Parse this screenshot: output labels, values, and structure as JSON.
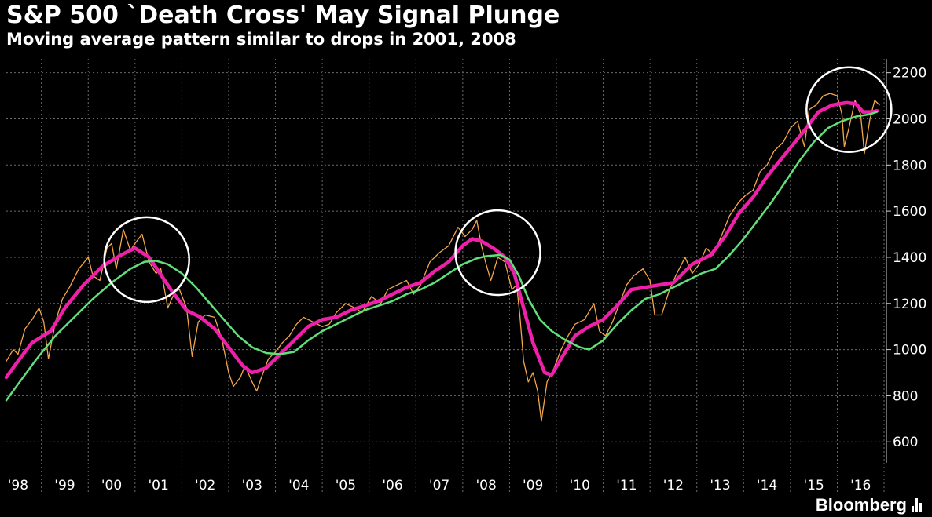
{
  "header": {
    "title": "S&P 500 `Death Cross' May Signal Plunge",
    "subtitle": "Moving average pattern similar to drops in 2001, 2008"
  },
  "footer": {
    "brand": "Bloomberg",
    "brand_icon": "bar-chart-icon"
  },
  "chart_data": {
    "type": "line",
    "title": "S&P 500 `Death Cross' May Signal Plunge",
    "subtitle": "Moving average pattern similar to drops in 2001, 2008",
    "xlabel": "",
    "ylabel": "",
    "x_range": [
      1997.75,
      2016.55
    ],
    "ylim": [
      560,
      2260
    ],
    "y_ticks": [
      600,
      800,
      1000,
      1200,
      1400,
      1600,
      1800,
      2000,
      2200
    ],
    "x_tick_labels": [
      {
        "x": 1998,
        "label": "'98"
      },
      {
        "x": 1999,
        "label": "'99"
      },
      {
        "x": 2000,
        "label": "'00"
      },
      {
        "x": 2001,
        "label": "'01"
      },
      {
        "x": 2002,
        "label": "'02"
      },
      {
        "x": 2003,
        "label": "'03"
      },
      {
        "x": 2004,
        "label": "'04"
      },
      {
        "x": 2005,
        "label": "'05"
      },
      {
        "x": 2006,
        "label": "'06"
      },
      {
        "x": 2007,
        "label": "'07"
      },
      {
        "x": 2008,
        "label": "'08"
      },
      {
        "x": 2009,
        "label": "'09"
      },
      {
        "x": 2010,
        "label": "'10"
      },
      {
        "x": 2011,
        "label": "'11"
      },
      {
        "x": 2012,
        "label": "'12"
      },
      {
        "x": 2013,
        "label": "'13"
      },
      {
        "x": 2014,
        "label": "'14"
      },
      {
        "x": 2015,
        "label": "'15"
      },
      {
        "x": 2016,
        "label": "'16"
      }
    ],
    "grid": true,
    "y_axis_side": "right",
    "series": [
      {
        "color": "#f5a64a",
        "points": [
          [
            1997.75,
            950
          ],
          [
            1997.9,
            1000
          ],
          [
            1998.0,
            980
          ],
          [
            1998.15,
            1090
          ],
          [
            1998.3,
            1130
          ],
          [
            1998.45,
            1180
          ],
          [
            1998.55,
            1120
          ],
          [
            1998.65,
            960
          ],
          [
            1998.8,
            1120
          ],
          [
            1998.95,
            1220
          ],
          [
            1999.1,
            1270
          ],
          [
            1999.3,
            1350
          ],
          [
            1999.5,
            1400
          ],
          [
            1999.6,
            1320
          ],
          [
            1999.75,
            1300
          ],
          [
            1999.9,
            1440
          ],
          [
            2000.0,
            1460
          ],
          [
            2000.1,
            1350
          ],
          [
            2000.25,
            1520
          ],
          [
            2000.4,
            1430
          ],
          [
            2000.5,
            1460
          ],
          [
            2000.65,
            1500
          ],
          [
            2000.8,
            1380
          ],
          [
            2000.95,
            1330
          ],
          [
            2001.05,
            1350
          ],
          [
            2001.2,
            1180
          ],
          [
            2001.35,
            1250
          ],
          [
            2001.45,
            1260
          ],
          [
            2001.6,
            1180
          ],
          [
            2001.72,
            970
          ],
          [
            2001.85,
            1120
          ],
          [
            2002.0,
            1150
          ],
          [
            2002.2,
            1140
          ],
          [
            2002.35,
            1050
          ],
          [
            2002.5,
            900
          ],
          [
            2002.6,
            840
          ],
          [
            2002.75,
            880
          ],
          [
            2002.85,
            930
          ],
          [
            2003.0,
            860
          ],
          [
            2003.1,
            820
          ],
          [
            2003.2,
            880
          ],
          [
            2003.35,
            960
          ],
          [
            2003.5,
            990
          ],
          [
            2003.65,
            1030
          ],
          [
            2003.8,
            1060
          ],
          [
            2003.95,
            1110
          ],
          [
            2004.1,
            1140
          ],
          [
            2004.3,
            1120
          ],
          [
            2004.5,
            1100
          ],
          [
            2004.65,
            1110
          ],
          [
            2004.8,
            1160
          ],
          [
            2005.0,
            1200
          ],
          [
            2005.2,
            1180
          ],
          [
            2005.35,
            1160
          ],
          [
            2005.55,
            1230
          ],
          [
            2005.75,
            1200
          ],
          [
            2005.9,
            1260
          ],
          [
            2006.1,
            1280
          ],
          [
            2006.3,
            1300
          ],
          [
            2006.45,
            1240
          ],
          [
            2006.6,
            1280
          ],
          [
            2006.8,
            1380
          ],
          [
            2007.0,
            1420
          ],
          [
            2007.2,
            1450
          ],
          [
            2007.4,
            1530
          ],
          [
            2007.55,
            1490
          ],
          [
            2007.7,
            1520
          ],
          [
            2007.8,
            1560
          ],
          [
            2007.9,
            1450
          ],
          [
            2008.0,
            1370
          ],
          [
            2008.1,
            1300
          ],
          [
            2008.25,
            1400
          ],
          [
            2008.4,
            1380
          ],
          [
            2008.55,
            1260
          ],
          [
            2008.65,
            1280
          ],
          [
            2008.72,
            1150
          ],
          [
            2008.8,
            950
          ],
          [
            2008.9,
            860
          ],
          [
            2009.0,
            900
          ],
          [
            2009.1,
            820
          ],
          [
            2009.18,
            690
          ],
          [
            2009.3,
            860
          ],
          [
            2009.45,
            920
          ],
          [
            2009.6,
            1000
          ],
          [
            2009.75,
            1060
          ],
          [
            2009.9,
            1110
          ],
          [
            2010.1,
            1130
          ],
          [
            2010.3,
            1200
          ],
          [
            2010.42,
            1080
          ],
          [
            2010.55,
            1060
          ],
          [
            2010.7,
            1120
          ],
          [
            2010.85,
            1200
          ],
          [
            2011.0,
            1280
          ],
          [
            2011.15,
            1320
          ],
          [
            2011.35,
            1350
          ],
          [
            2011.5,
            1300
          ],
          [
            2011.6,
            1150
          ],
          [
            2011.75,
            1150
          ],
          [
            2011.9,
            1250
          ],
          [
            2012.05,
            1320
          ],
          [
            2012.25,
            1400
          ],
          [
            2012.4,
            1330
          ],
          [
            2012.55,
            1370
          ],
          [
            2012.7,
            1440
          ],
          [
            2012.85,
            1410
          ],
          [
            2013.0,
            1480
          ],
          [
            2013.2,
            1580
          ],
          [
            2013.4,
            1640
          ],
          [
            2013.55,
            1670
          ],
          [
            2013.7,
            1690
          ],
          [
            2013.85,
            1770
          ],
          [
            2014.0,
            1800
          ],
          [
            2014.15,
            1860
          ],
          [
            2014.35,
            1900
          ],
          [
            2014.5,
            1960
          ],
          [
            2014.65,
            1990
          ],
          [
            2014.8,
            1880
          ],
          [
            2014.9,
            2040
          ],
          [
            2015.05,
            2060
          ],
          [
            2015.2,
            2100
          ],
          [
            2015.35,
            2110
          ],
          [
            2015.5,
            2100
          ],
          [
            2015.6,
            2020
          ],
          [
            2015.65,
            1880
          ],
          [
            2015.75,
            1960
          ],
          [
            2015.88,
            2080
          ],
          [
            2016.0,
            2020
          ],
          [
            2016.08,
            1850
          ],
          [
            2016.2,
            2000
          ],
          [
            2016.3,
            2080
          ],
          [
            2016.4,
            2060
          ]
        ]
      },
      {
        "color": "#ee1fa8",
        "points": [
          [
            1997.75,
            880
          ],
          [
            1998.0,
            950
          ],
          [
            1998.3,
            1030
          ],
          [
            1998.7,
            1080
          ],
          [
            1999.0,
            1180
          ],
          [
            1999.4,
            1280
          ],
          [
            1999.8,
            1360
          ],
          [
            2000.2,
            1410
          ],
          [
            2000.5,
            1440
          ],
          [
            2000.8,
            1400
          ],
          [
            2001.0,
            1340
          ],
          [
            2001.3,
            1250
          ],
          [
            2001.6,
            1170
          ],
          [
            2001.9,
            1140
          ],
          [
            2002.2,
            1090
          ],
          [
            2002.5,
            1010
          ],
          [
            2002.8,
            930
          ],
          [
            2003.0,
            900
          ],
          [
            2003.3,
            920
          ],
          [
            2003.6,
            980
          ],
          [
            2003.9,
            1040
          ],
          [
            2004.2,
            1100
          ],
          [
            2004.5,
            1130
          ],
          [
            2004.8,
            1140
          ],
          [
            2005.1,
            1170
          ],
          [
            2005.4,
            1190
          ],
          [
            2005.7,
            1210
          ],
          [
            2006.0,
            1240
          ],
          [
            2006.3,
            1270
          ],
          [
            2006.6,
            1290
          ],
          [
            2006.9,
            1340
          ],
          [
            2007.2,
            1380
          ],
          [
            2007.5,
            1450
          ],
          [
            2007.7,
            1480
          ],
          [
            2007.9,
            1470
          ],
          [
            2008.15,
            1440
          ],
          [
            2008.4,
            1400
          ],
          [
            2008.6,
            1330
          ],
          [
            2008.8,
            1180
          ],
          [
            2009.0,
            1030
          ],
          [
            2009.25,
            900
          ],
          [
            2009.4,
            890
          ],
          [
            2009.6,
            960
          ],
          [
            2009.9,
            1060
          ],
          [
            2010.2,
            1100
          ],
          [
            2010.5,
            1130
          ],
          [
            2010.8,
            1190
          ],
          [
            2011.1,
            1260
          ],
          [
            2011.4,
            1270
          ],
          [
            2011.7,
            1280
          ],
          [
            2012.0,
            1290
          ],
          [
            2012.4,
            1370
          ],
          [
            2012.8,
            1410
          ],
          [
            2013.1,
            1490
          ],
          [
            2013.4,
            1590
          ],
          [
            2013.7,
            1660
          ],
          [
            2014.0,
            1750
          ],
          [
            2014.4,
            1850
          ],
          [
            2014.8,
            1950
          ],
          [
            2015.1,
            2030
          ],
          [
            2015.4,
            2060
          ],
          [
            2015.7,
            2070
          ],
          [
            2015.9,
            2065
          ],
          [
            2016.05,
            2030
          ],
          [
            2016.25,
            2030
          ],
          [
            2016.35,
            2035
          ]
        ]
      },
      {
        "color": "#5fe07a",
        "points": [
          [
            1997.75,
            780
          ],
          [
            1998.0,
            850
          ],
          [
            1998.4,
            960
          ],
          [
            1998.8,
            1060
          ],
          [
            1999.2,
            1140
          ],
          [
            1999.6,
            1220
          ],
          [
            2000.0,
            1290
          ],
          [
            2000.4,
            1350
          ],
          [
            2000.7,
            1380
          ],
          [
            2000.95,
            1385
          ],
          [
            2001.2,
            1370
          ],
          [
            2001.5,
            1330
          ],
          [
            2001.8,
            1270
          ],
          [
            2002.1,
            1200
          ],
          [
            2002.4,
            1130
          ],
          [
            2002.7,
            1060
          ],
          [
            2003.0,
            1010
          ],
          [
            2003.3,
            985
          ],
          [
            2003.6,
            980
          ],
          [
            2003.9,
            990
          ],
          [
            2004.2,
            1040
          ],
          [
            2004.5,
            1080
          ],
          [
            2004.8,
            1110
          ],
          [
            2005.1,
            1140
          ],
          [
            2005.4,
            1170
          ],
          [
            2005.7,
            1190
          ],
          [
            2006.0,
            1210
          ],
          [
            2006.3,
            1240
          ],
          [
            2006.6,
            1260
          ],
          [
            2006.9,
            1290
          ],
          [
            2007.2,
            1330
          ],
          [
            2007.5,
            1370
          ],
          [
            2007.8,
            1395
          ],
          [
            2008.0,
            1405
          ],
          [
            2008.3,
            1410
          ],
          [
            2008.5,
            1390
          ],
          [
            2008.7,
            1320
          ],
          [
            2008.9,
            1220
          ],
          [
            2009.15,
            1130
          ],
          [
            2009.4,
            1080
          ],
          [
            2009.7,
            1040
          ],
          [
            2010.0,
            1010
          ],
          [
            2010.2,
            1000
          ],
          [
            2010.5,
            1040
          ],
          [
            2010.8,
            1110
          ],
          [
            2011.1,
            1170
          ],
          [
            2011.4,
            1220
          ],
          [
            2011.7,
            1240
          ],
          [
            2012.0,
            1270
          ],
          [
            2012.3,
            1300
          ],
          [
            2012.6,
            1330
          ],
          [
            2012.9,
            1350
          ],
          [
            2013.2,
            1410
          ],
          [
            2013.5,
            1480
          ],
          [
            2013.8,
            1560
          ],
          [
            2014.1,
            1640
          ],
          [
            2014.4,
            1730
          ],
          [
            2014.7,
            1820
          ],
          [
            2015.0,
            1900
          ],
          [
            2015.3,
            1960
          ],
          [
            2015.6,
            1990
          ],
          [
            2015.9,
            2010
          ],
          [
            2016.2,
            2020
          ],
          [
            2016.35,
            2030
          ]
        ]
      }
    ],
    "annotations": [
      {
        "type": "circle",
        "x": 2000.75,
        "y": 1390
      },
      {
        "type": "circle",
        "x": 2008.25,
        "y": 1420
      },
      {
        "type": "circle",
        "x": 2015.75,
        "y": 2040
      }
    ]
  }
}
